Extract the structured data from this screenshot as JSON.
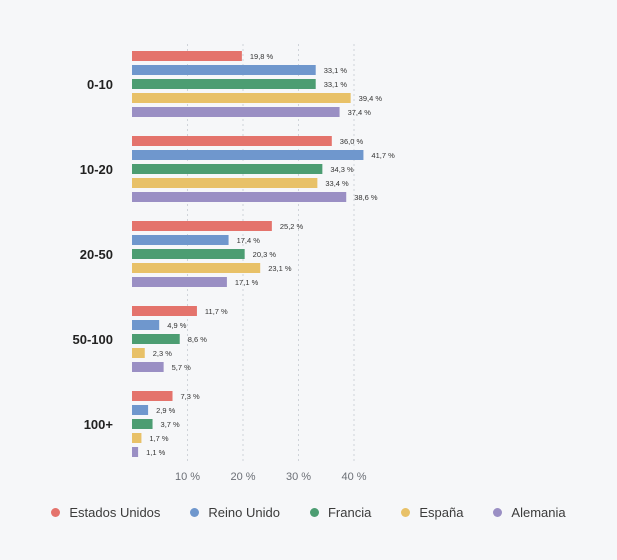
{
  "chart_data": {
    "type": "bar",
    "orientation": "horizontal",
    "categories": [
      "0-10",
      "10-20",
      "20-50",
      "50-100",
      "100+"
    ],
    "series": [
      {
        "name": "Estados Unidos",
        "color": "#e4736c",
        "values": [
          19.8,
          36.0,
          25.2,
          11.7,
          7.3
        ],
        "labels": [
          "19,8 %",
          "36,0 %",
          "25,2 %",
          "11,7 %",
          "7,3 %"
        ]
      },
      {
        "name": "Reino Unido",
        "color": "#6f97cd",
        "values": [
          33.1,
          41.7,
          17.4,
          4.9,
          2.9
        ],
        "labels": [
          "33,1 %",
          "41,7 %",
          "17,4 %",
          "4,9 %",
          "2,9 %"
        ]
      },
      {
        "name": "Francia",
        "color": "#4c9d72",
        "values": [
          33.1,
          34.3,
          20.3,
          8.6,
          3.7
        ],
        "labels": [
          "33,1 %",
          "34,3 %",
          "20,3 %",
          "8,6 %",
          "3,7 %"
        ]
      },
      {
        "name": "España",
        "color": "#e8c168",
        "values": [
          39.4,
          33.4,
          23.1,
          2.3,
          1.7
        ],
        "labels": [
          "39,4 %",
          "33,4 %",
          "23,1 %",
          "2,3 %",
          "1,7 %"
        ]
      },
      {
        "name": "Alemania",
        "color": "#9a8fc4",
        "values": [
          37.4,
          38.6,
          17.1,
          5.7,
          1.1
        ],
        "labels": [
          "37,4 %",
          "38,6 %",
          "17,1 %",
          "5,7 %",
          "1,1 %"
        ]
      }
    ],
    "xticks": [
      {
        "value": 10,
        "label": "10 %"
      },
      {
        "value": 20,
        "label": "20 %"
      },
      {
        "value": 30,
        "label": "30 %"
      },
      {
        "value": 40,
        "label": "40 %"
      }
    ],
    "xlim": [
      0,
      45
    ],
    "grid": true,
    "legend_position": "bottom",
    "title": "",
    "xlabel": "",
    "ylabel": ""
  }
}
